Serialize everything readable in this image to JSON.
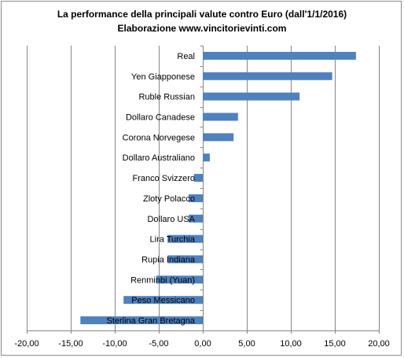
{
  "chart_data": {
    "type": "bar",
    "orientation": "horizontal",
    "title": "La performance della principali valute contro Euro (dall'1/1/2016)",
    "subtitle": "Elaborazione  www.vincitorievinti.com",
    "categories": [
      "Real",
      "Yen Giapponese",
      "Ruble Russian",
      "Dollaro Canadese",
      "Corona Norvegese",
      "Dollaro Australiano",
      "Franco Svizzero",
      "Zloty Polacco",
      "Dollaro USA",
      "Lira Turchia",
      "Rupia Indiana",
      "Renminbi (Yuan)",
      "Peso Messicano",
      "Sterlina Gran Bretagna"
    ],
    "values": [
      17.4,
      14.7,
      11.0,
      4.0,
      3.5,
      0.8,
      -1.0,
      -1.6,
      -1.6,
      -4.0,
      -4.0,
      -5.3,
      -9.0,
      -13.9
    ],
    "xlim": [
      -20,
      20
    ],
    "xticks": [
      -20,
      -15,
      -10,
      -5,
      0,
      5,
      10,
      15,
      20
    ],
    "xtick_labels": [
      "-20,00",
      "-15,00",
      "-10,00",
      "-5,00",
      "0,00",
      "5,00",
      "10,00",
      "15,00",
      "20,00"
    ],
    "xlabel": "",
    "ylabel": "",
    "grid": "vertical",
    "legend": "none",
    "bar_color": "#4f81bd"
  }
}
